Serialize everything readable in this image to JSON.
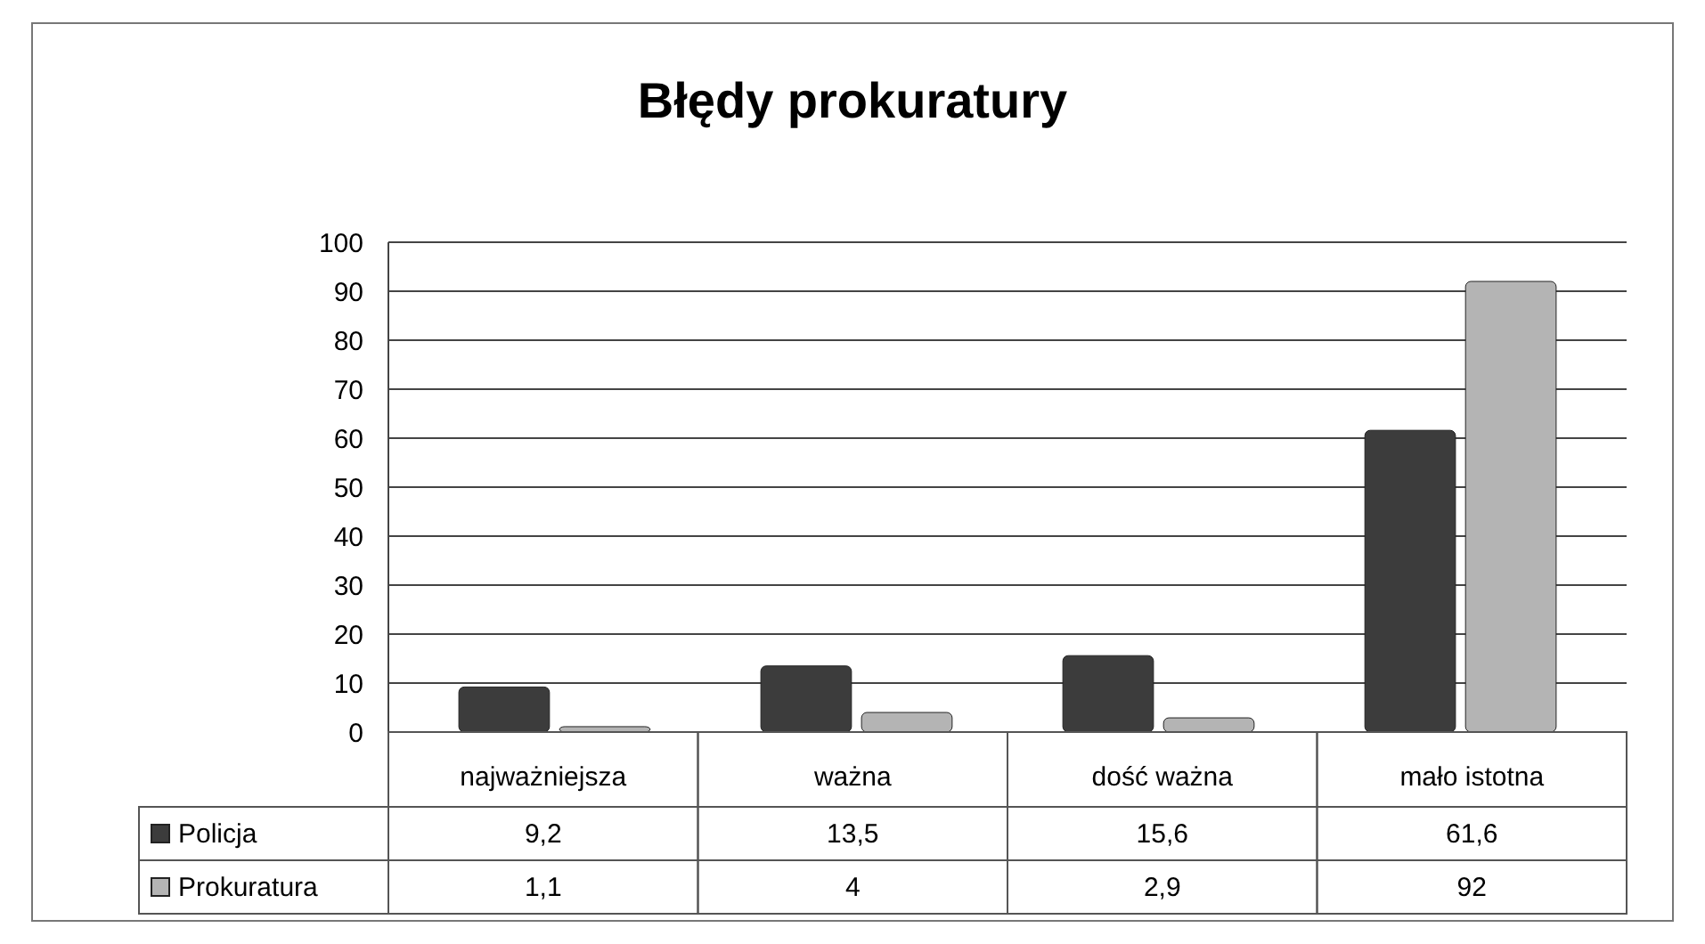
{
  "chart_data": {
    "type": "bar",
    "title": "Błędy prokuratury",
    "categories": [
      "najważniejsza",
      "ważna",
      "dość ważna",
      "mało istotna"
    ],
    "series": [
      {
        "name": "Policja",
        "color": "#3c3c3c",
        "values": [
          9.2,
          13.5,
          15.6,
          61.6
        ],
        "value_labels": [
          "9,2",
          "13,5",
          "15,6",
          "61,6"
        ]
      },
      {
        "name": "Prokuratura",
        "color": "#b4b4b4",
        "values": [
          1.1,
          4,
          2.9,
          92
        ],
        "value_labels": [
          "1,1",
          "4",
          "2,9",
          "92"
        ]
      }
    ],
    "ylim": [
      0,
      100
    ],
    "yticks": [
      0,
      10,
      20,
      30,
      40,
      50,
      60,
      70,
      80,
      90,
      100
    ],
    "grid": "y",
    "legend": "bottom"
  }
}
